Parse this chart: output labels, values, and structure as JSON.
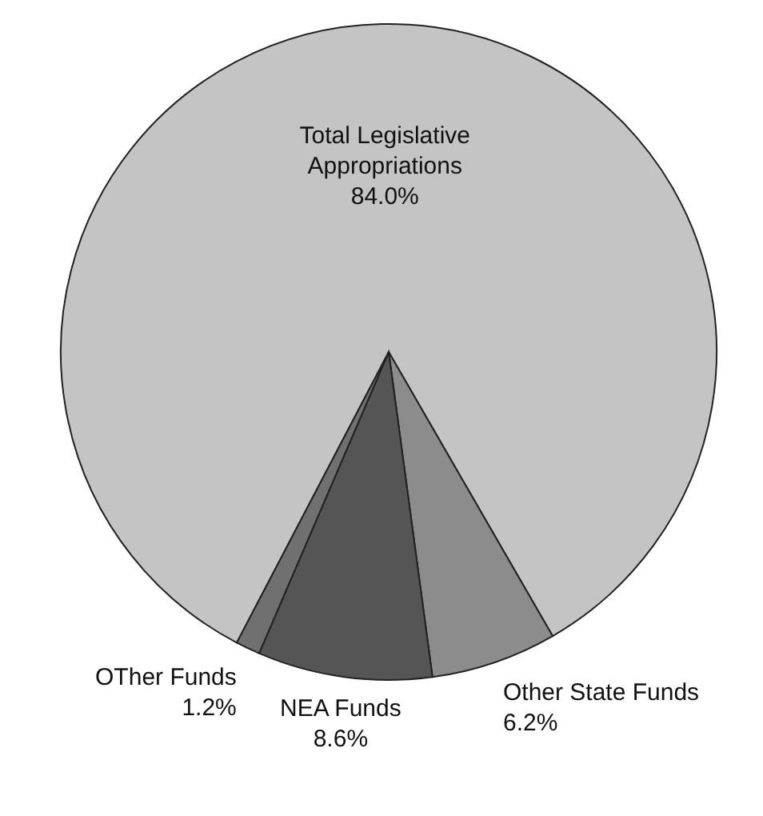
{
  "chart_data": {
    "type": "pie",
    "categories": [
      "Total Legislative Appropriations",
      "Other State Funds",
      "NEA Funds",
      "OTher Funds"
    ],
    "values": [
      84.0,
      6.2,
      8.6,
      1.2
    ],
    "colors": [
      "#c4c4c4",
      "#8c8c8c",
      "#555555",
      "#707070"
    ],
    "value_labels": [
      "84.0%",
      "6.2%",
      "8.6%",
      "1.2%"
    ]
  }
}
